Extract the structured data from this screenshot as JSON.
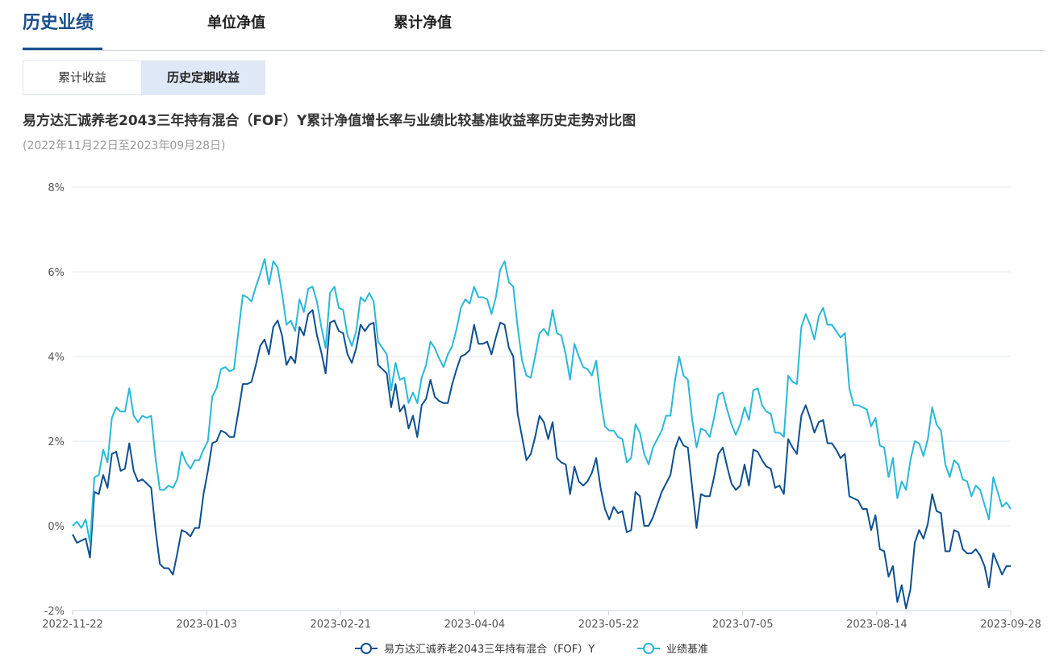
{
  "tabs": {
    "main": [
      "历史业绩",
      "单位净值",
      "累计净值"
    ],
    "sub": [
      "累计收益",
      "历史定期收益"
    ]
  },
  "colors": {
    "accent": "#1b4f8c",
    "fund": "#0e4f8f",
    "benchmark": "#29b8d8"
  },
  "chart_data": {
    "type": "line",
    "title": "易方达汇诚养老2043三年持有混合（FOF）Y累计净值增长率与业绩比较基准收益率历史走势对比图",
    "subtitle": "(2022年11月22日至2023年09月28日)",
    "y_ticks": [
      "8%",
      "6%",
      "4%",
      "2%",
      "0%",
      "-2%"
    ],
    "ylim": [
      -2,
      8
    ],
    "x_ticks": [
      "2022-11-22",
      "2023-01-03",
      "2023-02-21",
      "2023-04-04",
      "2023-05-22",
      "2023-07-05",
      "2023-08-14",
      "2023-09-28"
    ],
    "series": [
      {
        "name": "易方达汇诚养老2043三年持有混合（FOF）Y",
        "values": [
          -0.2,
          -0.4,
          -0.35,
          -0.3,
          -0.75,
          0.8,
          0.75,
          1.2,
          0.9,
          1.7,
          1.75,
          1.3,
          1.35,
          1.95,
          1.3,
          1.05,
          1.1,
          1.0,
          0.9,
          -0.1,
          -0.9,
          -1.0,
          -1.0,
          -1.15,
          -0.65,
          -0.1,
          -0.15,
          -0.25,
          -0.05,
          -0.05,
          0.75,
          1.3,
          1.95,
          2.0,
          2.25,
          2.2,
          2.1,
          2.1,
          2.7,
          3.35,
          3.35,
          3.4,
          3.8,
          4.25,
          4.4,
          4.05,
          4.7,
          4.85,
          4.5,
          3.8,
          4.0,
          3.85,
          4.7,
          4.5,
          5.0,
          5.1,
          4.5,
          4.1,
          3.6,
          4.8,
          4.85,
          4.6,
          4.55,
          4.05,
          3.85,
          4.2,
          4.75,
          4.6,
          4.75,
          4.8,
          3.8,
          3.7,
          3.6,
          2.8,
          3.35,
          2.7,
          2.85,
          2.3,
          2.6,
          2.1,
          2.85,
          3.0,
          3.45,
          3.05,
          2.95,
          2.9,
          2.9,
          3.35,
          3.7,
          4.0,
          4.05,
          4.15,
          4.75,
          4.3,
          4.3,
          4.35,
          4.05,
          4.45,
          4.8,
          4.75,
          4.2,
          4.0,
          2.65,
          2.1,
          1.55,
          1.7,
          2.1,
          2.6,
          2.45,
          2.05,
          2.45,
          1.6,
          1.5,
          1.45,
          0.75,
          1.4,
          1.05,
          0.95,
          1.05,
          1.25,
          1.6,
          0.9,
          0.4,
          0.15,
          0.45,
          0.3,
          0.35,
          -0.15,
          -0.1,
          0.8,
          0.7,
          0.0,
          0.0,
          0.2,
          0.5,
          0.8,
          1.0,
          1.2,
          1.8,
          2.1,
          1.9,
          1.85,
          0.9,
          -0.05,
          0.75,
          0.7,
          0.7,
          1.15,
          1.7,
          1.85,
          1.4,
          1.0,
          0.85,
          0.95,
          1.45,
          0.95,
          1.8,
          1.75,
          1.55,
          1.4,
          1.35,
          0.9,
          0.95,
          0.75,
          2.05,
          1.85,
          1.7,
          2.6,
          2.85,
          2.55,
          2.2,
          2.45,
          2.5,
          1.95,
          1.95,
          1.8,
          1.6,
          1.7,
          0.7,
          0.65,
          0.6,
          0.4,
          0.4,
          -0.1,
          0.25,
          -0.55,
          -0.6,
          -1.2,
          -0.95,
          -1.8,
          -1.4,
          -1.95,
          -1.5,
          -0.4,
          -0.1,
          -0.3,
          0.05,
          0.75,
          0.35,
          0.3,
          -0.6,
          -0.6,
          -0.1,
          -0.15,
          -0.55,
          -0.65,
          -0.65,
          -0.55,
          -0.7,
          -0.95,
          -1.45,
          -0.65,
          -0.9,
          -1.15,
          -0.95,
          -0.95
        ]
      },
      {
        "name": "业绩基准",
        "values": [
          0.0,
          0.1,
          -0.05,
          0.15,
          -0.4,
          1.15,
          1.2,
          1.8,
          1.5,
          2.55,
          2.8,
          2.7,
          2.7,
          3.25,
          2.6,
          2.45,
          2.6,
          2.55,
          2.6,
          1.6,
          0.85,
          0.85,
          0.95,
          0.9,
          1.1,
          1.75,
          1.5,
          1.35,
          1.55,
          1.55,
          1.8,
          2.0,
          3.05,
          3.25,
          3.7,
          3.75,
          3.65,
          3.7,
          4.6,
          5.45,
          5.4,
          5.3,
          5.65,
          5.95,
          6.3,
          5.7,
          6.25,
          6.1,
          5.5,
          4.75,
          4.85,
          4.6,
          5.35,
          5.05,
          5.6,
          5.65,
          5.3,
          4.7,
          4.2,
          5.5,
          5.65,
          5.15,
          5.1,
          4.5,
          4.25,
          4.6,
          5.4,
          5.3,
          5.5,
          5.3,
          4.35,
          4.2,
          4.05,
          3.2,
          3.85,
          3.45,
          3.5,
          2.9,
          3.15,
          2.9,
          3.5,
          3.8,
          4.35,
          4.2,
          3.95,
          3.75,
          4.05,
          4.25,
          4.65,
          5.15,
          5.35,
          5.25,
          5.65,
          5.4,
          5.4,
          5.35,
          5.0,
          5.4,
          6.05,
          6.25,
          5.75,
          5.65,
          4.7,
          3.9,
          3.55,
          3.5,
          4.0,
          4.55,
          4.65,
          4.5,
          5.1,
          4.55,
          4.5,
          4.05,
          3.45,
          4.3,
          4.0,
          3.75,
          3.7,
          3.55,
          3.9,
          3.0,
          2.35,
          2.25,
          2.25,
          2.1,
          2.05,
          1.5,
          1.6,
          2.4,
          2.2,
          1.7,
          1.45,
          1.85,
          2.05,
          2.25,
          2.6,
          2.6,
          3.4,
          4.0,
          3.55,
          3.45,
          2.5,
          1.85,
          2.3,
          2.25,
          2.1,
          2.55,
          3.1,
          3.15,
          2.75,
          2.4,
          2.15,
          2.4,
          2.8,
          2.5,
          3.2,
          3.25,
          2.85,
          2.7,
          2.65,
          2.2,
          2.2,
          2.1,
          3.55,
          3.4,
          3.35,
          4.7,
          5.0,
          4.75,
          4.4,
          4.95,
          5.15,
          4.75,
          4.75,
          4.6,
          4.45,
          4.55,
          3.25,
          2.85,
          2.85,
          2.8,
          2.75,
          2.35,
          2.55,
          1.9,
          1.85,
          1.15,
          1.6,
          0.65,
          1.05,
          0.85,
          1.55,
          2.0,
          1.95,
          1.65,
          2.05,
          2.8,
          2.4,
          2.25,
          1.45,
          1.15,
          1.55,
          1.45,
          1.1,
          1.05,
          0.7,
          0.95,
          0.85,
          0.5,
          0.15,
          1.15,
          0.8,
          0.45,
          0.55,
          0.4
        ]
      }
    ],
    "grid": true,
    "legend": "bottom-center"
  }
}
